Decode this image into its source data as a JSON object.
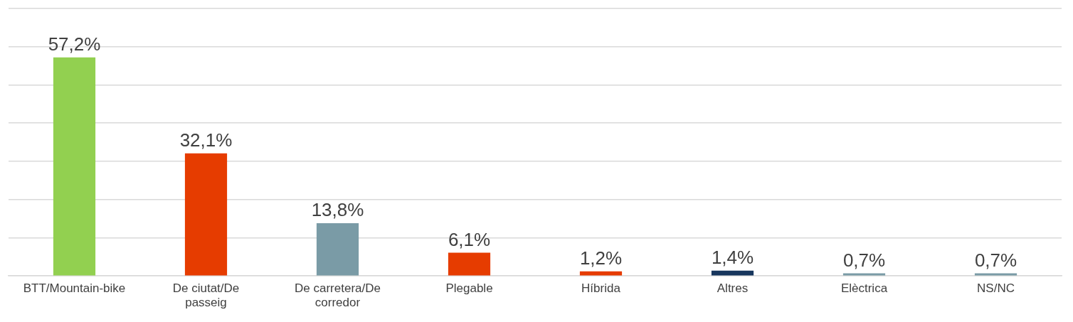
{
  "chart_data": {
    "type": "bar",
    "categories": [
      "BTT/Mountain-bike",
      "De ciutat/De passeig",
      "De carretera/De corredor",
      "Plegable",
      "Híbrida",
      "Altres",
      "Elèctrica",
      "NS/NC"
    ],
    "values": [
      57.2,
      32.1,
      13.8,
      6.1,
      1.2,
      1.4,
      0.7,
      0.7
    ],
    "colors": [
      "#92d050",
      "#e63c00",
      "#7a9ba6",
      "#e63c00",
      "#e63c00",
      "#17365d",
      "#7a9ba6",
      "#7a9ba6"
    ],
    "value_labels": [
      "57,2%",
      "32,1%",
      "13,8%",
      "6,1%",
      "1,2%",
      "1,4%",
      "0,7%",
      "0,7%"
    ],
    "ylim": [
      0,
      70
    ],
    "yticks": [
      {
        "value": 0,
        "label": null
      },
      {
        "value": 10,
        "label": null
      },
      {
        "value": 20,
        "label": null
      },
      {
        "value": 30,
        "label": null
      },
      {
        "value": 40,
        "label": null
      },
      {
        "value": 50,
        "label": null
      },
      {
        "value": 60,
        "label": null
      },
      {
        "value": 70,
        "label": null
      }
    ],
    "grid": "y",
    "tick_labels": "x",
    "legend": false
  }
}
